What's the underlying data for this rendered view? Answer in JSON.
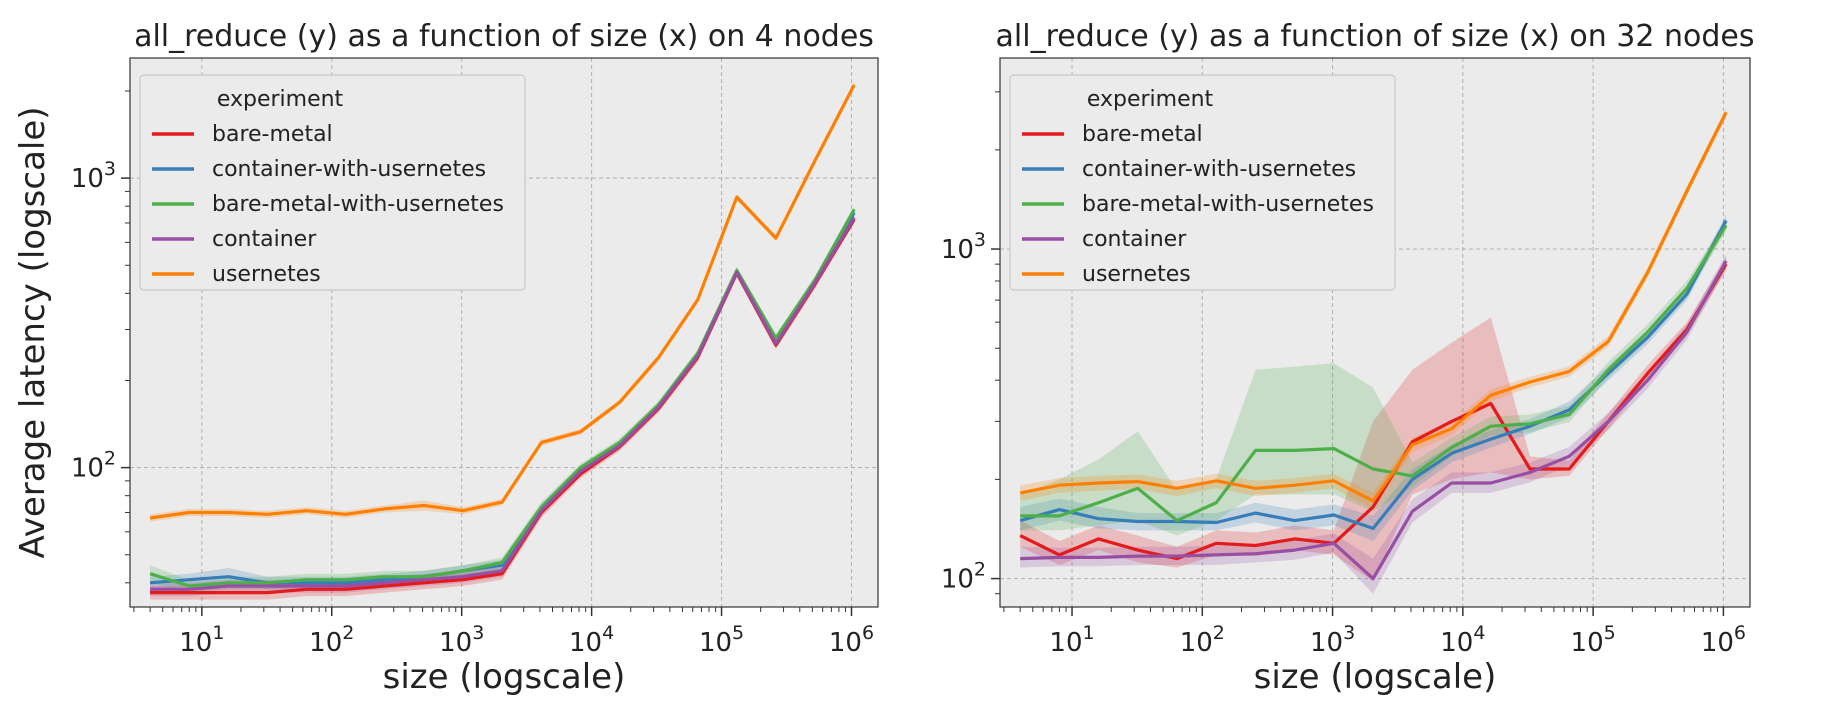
{
  "chart_data": [
    {
      "type": "line",
      "title": "all_reduce (y) as a function of size (x) on 4 nodes",
      "xlabel": "size (logscale)",
      "ylabel": "Average latency (logscale)",
      "xscale": "log",
      "yscale": "log",
      "xlim": [
        2.8,
        1600000
      ],
      "ylim": [
        33,
        2600
      ],
      "xticks": [
        10,
        100,
        1000,
        10000,
        100000,
        1000000
      ],
      "yticks": [
        100,
        1000
      ],
      "grid": true,
      "legend": {
        "title": "experiment",
        "placement": "top-left"
      },
      "x": [
        4,
        8,
        16,
        32,
        64,
        128,
        256,
        512,
        1024,
        2048,
        4096,
        8192,
        16384,
        32768,
        65536,
        131072,
        262144,
        524288,
        1048576
      ],
      "series": [
        {
          "name": "bare-metal",
          "color": "#e41a1c",
          "values": [
            37,
            37,
            37,
            37,
            38,
            38,
            39,
            40,
            41,
            43,
            70,
            95,
            118,
            160,
            240,
            470,
            265,
            430,
            720
          ],
          "band": [
            [
              35,
              39
            ],
            [
              35,
              39
            ],
            [
              35,
              39
            ],
            [
              35,
              39
            ],
            [
              36,
              40
            ],
            [
              36,
              40
            ],
            [
              37,
              41
            ],
            [
              38,
              42
            ],
            [
              39,
              43
            ],
            [
              41,
              45
            ],
            [
              67,
              73
            ],
            [
              92,
              98
            ],
            [
              114,
              122
            ],
            [
              155,
              165
            ],
            [
              232,
              248
            ],
            [
              455,
              485
            ],
            [
              256,
              274
            ],
            [
              416,
              444
            ],
            [
              700,
              740
            ]
          ]
        },
        {
          "name": "container-with-usernetes",
          "color": "#377eb8",
          "values": [
            40,
            41,
            42,
            40,
            40,
            40,
            41,
            42,
            44,
            46,
            72,
            98,
            120,
            163,
            245,
            475,
            270,
            440,
            760
          ],
          "band": [
            [
              38,
              42
            ],
            [
              39,
              43
            ],
            [
              40,
              45
            ],
            [
              38,
              42
            ],
            [
              38,
              42
            ],
            [
              38,
              42
            ],
            [
              39,
              43
            ],
            [
              40,
              44
            ],
            [
              42,
              46
            ],
            [
              44,
              48
            ],
            [
              69,
              75
            ],
            [
              95,
              101
            ],
            [
              116,
              124
            ],
            [
              158,
              168
            ],
            [
              237,
              253
            ],
            [
              460,
              490
            ],
            [
              261,
              279
            ],
            [
              426,
              454
            ],
            [
              740,
              780
            ]
          ]
        },
        {
          "name": "bare-metal-with-usernetes",
          "color": "#4daf4a",
          "values": [
            43,
            39,
            40,
            40,
            41,
            41,
            42,
            42,
            44,
            47,
            73,
            100,
            122,
            165,
            248,
            480,
            280,
            445,
            780
          ],
          "band": [
            [
              40,
              46
            ],
            [
              37,
              41
            ],
            [
              38,
              42
            ],
            [
              38,
              42
            ],
            [
              39,
              43
            ],
            [
              39,
              43
            ],
            [
              40,
              44
            ],
            [
              40,
              44
            ],
            [
              42,
              46
            ],
            [
              45,
              49
            ],
            [
              70,
              76
            ],
            [
              97,
              103
            ],
            [
              118,
              126
            ],
            [
              160,
              170
            ],
            [
              240,
              256
            ],
            [
              465,
              495
            ],
            [
              271,
              289
            ],
            [
              431,
              459
            ],
            [
              760,
              800
            ]
          ]
        },
        {
          "name": "container",
          "color": "#984ea3",
          "values": [
            38,
            38,
            39,
            39,
            39,
            39,
            40,
            41,
            42,
            44,
            71,
            97,
            119,
            162,
            243,
            472,
            268,
            435,
            730
          ],
          "band": [
            [
              36,
              40
            ],
            [
              36,
              40
            ],
            [
              37,
              41
            ],
            [
              37,
              41
            ],
            [
              37,
              41
            ],
            [
              37,
              41
            ],
            [
              38,
              42
            ],
            [
              39,
              43
            ],
            [
              40,
              44
            ],
            [
              42,
              46
            ],
            [
              68,
              74
            ],
            [
              94,
              100
            ],
            [
              115,
              123
            ],
            [
              157,
              167
            ],
            [
              235,
              251
            ],
            [
              457,
              487
            ],
            [
              259,
              277
            ],
            [
              421,
              449
            ],
            [
              710,
              750
            ]
          ]
        },
        {
          "name": "usernetes",
          "color": "#ff7f00",
          "values": [
            67,
            70,
            70,
            69,
            71,
            69,
            72,
            74,
            71,
            76,
            122,
            133,
            168,
            240,
            380,
            860,
            620,
            1150,
            2100
          ],
          "band": [
            [
              65,
              69
            ],
            [
              68,
              72
            ],
            [
              68,
              72
            ],
            [
              67,
              71
            ],
            [
              69,
              73
            ],
            [
              67,
              71
            ],
            [
              70,
              74
            ],
            [
              71,
              77
            ],
            [
              69,
              73
            ],
            [
              74,
              78
            ],
            [
              119,
              125
            ],
            [
              130,
              136
            ],
            [
              164,
              172
            ],
            [
              234,
              246
            ],
            [
              371,
              389
            ],
            [
              840,
              880
            ],
            [
              605,
              635
            ],
            [
              1120,
              1180
            ],
            [
              2050,
              2150
            ]
          ]
        }
      ]
    },
    {
      "type": "line",
      "title": "all_reduce (y) as a function of size (x) on 32 nodes",
      "xlabel": "size (logscale)",
      "ylabel": "",
      "xscale": "log",
      "yscale": "log",
      "xlim": [
        2.8,
        1600000
      ],
      "ylim": [
        82,
        3800
      ],
      "xticks": [
        10,
        100,
        1000,
        10000,
        100000,
        1000000
      ],
      "yticks": [
        100,
        1000
      ],
      "grid": true,
      "legend": {
        "title": "experiment",
        "placement": "top-left"
      },
      "x": [
        4,
        8,
        16,
        32,
        64,
        128,
        256,
        512,
        1024,
        2048,
        4096,
        8192,
        16384,
        32768,
        65536,
        131072,
        262144,
        524288,
        1048576
      ],
      "series": [
        {
          "name": "bare-metal",
          "color": "#e41a1c",
          "values": [
            135,
            118,
            132,
            122,
            115,
            128,
            126,
            132,
            128,
            165,
            260,
            300,
            340,
            215,
            215,
            300,
            420,
            570,
            900
          ],
          "band": [
            [
              125,
              150
            ],
            [
              110,
              130
            ],
            [
              122,
              145
            ],
            [
              112,
              135
            ],
            [
              108,
              125
            ],
            [
              118,
              140
            ],
            [
              117,
              138
            ],
            [
              122,
              145
            ],
            [
              118,
              140
            ],
            [
              98,
              300
            ],
            [
              180,
              430
            ],
            [
              200,
              520
            ],
            [
              210,
              620
            ],
            [
              200,
              235
            ],
            [
              205,
              228
            ],
            [
              285,
              318
            ],
            [
              400,
              445
            ],
            [
              545,
              600
            ],
            [
              860,
              945
            ]
          ]
        },
        {
          "name": "container-with-usernetes",
          "color": "#377eb8",
          "values": [
            150,
            162,
            152,
            149,
            149,
            148,
            158,
            150,
            156,
            142,
            200,
            240,
            265,
            290,
            325,
            420,
            540,
            730,
            1220
          ],
          "band": [
            [
              140,
              165
            ],
            [
              150,
              175
            ],
            [
              142,
              165
            ],
            [
              140,
              158
            ],
            [
              140,
              158
            ],
            [
              140,
              158
            ],
            [
              148,
              170
            ],
            [
              140,
              162
            ],
            [
              145,
              168
            ],
            [
              130,
              155
            ],
            [
              185,
              215
            ],
            [
              225,
              255
            ],
            [
              250,
              282
            ],
            [
              275,
              305
            ],
            [
              308,
              345
            ],
            [
              400,
              442
            ],
            [
              515,
              568
            ],
            [
              700,
              765
            ],
            [
              1170,
              1270
            ]
          ]
        },
        {
          "name": "bare-metal-with-usernetes",
          "color": "#4daf4a",
          "values": [
            155,
            155,
            170,
            188,
            150,
            170,
            245,
            245,
            248,
            215,
            205,
            250,
            290,
            295,
            315,
            430,
            560,
            760,
            1180
          ],
          "band": [
            [
              140,
              180
            ],
            [
              140,
              200
            ],
            [
              145,
              230
            ],
            [
              150,
              280
            ],
            [
              135,
              185
            ],
            [
              150,
              200
            ],
            [
              180,
              430
            ],
            [
              180,
              440
            ],
            [
              180,
              450
            ],
            [
              160,
              380
            ],
            [
              190,
              225
            ],
            [
              235,
              268
            ],
            [
              272,
              310
            ],
            [
              278,
              315
            ],
            [
              298,
              335
            ],
            [
              408,
              455
            ],
            [
              530,
              592
            ],
            [
              720,
              800
            ],
            [
              1130,
              1230
            ]
          ]
        },
        {
          "name": "container",
          "color": "#984ea3",
          "values": [
            115,
            116,
            116,
            117,
            117,
            118,
            119,
            122,
            128,
            100,
            160,
            195,
            195,
            210,
            235,
            300,
            400,
            560,
            920
          ],
          "band": [
            [
              108,
              125
            ],
            [
              109,
              124
            ],
            [
              109,
              124
            ],
            [
              110,
              125
            ],
            [
              110,
              125
            ],
            [
              110,
              126
            ],
            [
              112,
              127
            ],
            [
              114,
              131
            ],
            [
              120,
              137
            ],
            [
              90,
              115
            ],
            [
              148,
              174
            ],
            [
              182,
              210
            ],
            [
              182,
              210
            ],
            [
              196,
              225
            ],
            [
              220,
              251
            ],
            [
              283,
              318
            ],
            [
              378,
              424
            ],
            [
              530,
              592
            ],
            [
              875,
              965
            ]
          ]
        },
        {
          "name": "usernetes",
          "color": "#ff7f00",
          "values": [
            182,
            192,
            195,
            197,
            188,
            198,
            188,
            192,
            198,
            172,
            255,
            285,
            360,
            395,
            425,
            525,
            850,
            1500,
            2600
          ],
          "band": [
            [
              172,
              192
            ],
            [
              182,
              202
            ],
            [
              185,
              205
            ],
            [
              187,
              207
            ],
            [
              178,
              198
            ],
            [
              188,
              208
            ],
            [
              178,
              198
            ],
            [
              182,
              202
            ],
            [
              188,
              208
            ],
            [
              162,
              182
            ],
            [
              242,
              268
            ],
            [
              272,
              298
            ],
            [
              345,
              375
            ],
            [
              380,
              410
            ],
            [
              410,
              440
            ],
            [
              505,
              545
            ],
            [
              820,
              880
            ],
            [
              1450,
              1550
            ],
            [
              2520,
              2680
            ]
          ]
        }
      ]
    }
  ]
}
